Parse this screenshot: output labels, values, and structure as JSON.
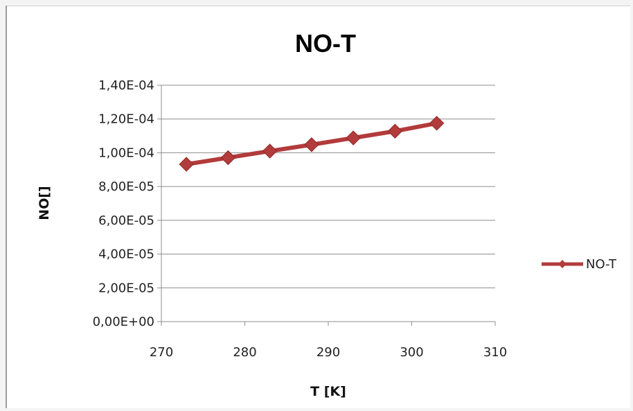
{
  "chart_data": {
    "type": "line",
    "title": "NO-T",
    "xlabel": "T [K]",
    "ylabel": "NO[]",
    "xlim": [
      270,
      310
    ],
    "ylim": [
      0,
      0.00014
    ],
    "xticks": [
      270,
      280,
      290,
      300,
      310
    ],
    "xtick_labels": [
      "270",
      "280",
      "290",
      "300",
      "310"
    ],
    "yticks": [
      0,
      2e-05,
      4e-05,
      6e-05,
      8e-05,
      0.0001,
      0.00012,
      0.00014
    ],
    "ytick_labels": [
      "0,00E+00",
      "2,00E-05",
      "4,00E-05",
      "6,00E-05",
      "8,00E-05",
      "1,00E-04",
      "1,20E-04",
      "1,40E-04"
    ],
    "grid": "horizontal",
    "legend_position": "right",
    "series": [
      {
        "name": "NO-T",
        "color": "#b33b3b",
        "marker": "diamond",
        "x": [
          273,
          278,
          283,
          288,
          293,
          298,
          303
        ],
        "y": [
          9.32e-05,
          9.71e-05,
          0.000101,
          0.0001048,
          0.0001088,
          0.0001128,
          0.0001175
        ]
      }
    ]
  }
}
